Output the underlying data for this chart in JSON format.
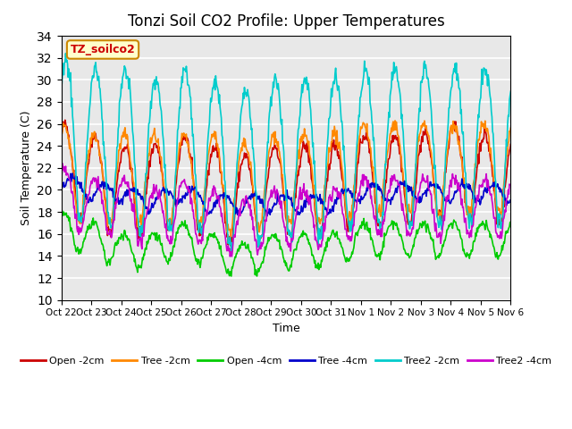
{
  "title": "Tonzi Soil CO2 Profile: Upper Temperatures",
  "xlabel": "Time",
  "ylabel": "Soil Temperature (C)",
  "ylim": [
    10,
    34
  ],
  "yticks": [
    10,
    12,
    14,
    16,
    18,
    20,
    22,
    24,
    26,
    28,
    30,
    32,
    34
  ],
  "xtick_labels": [
    "Oct 22",
    "Oct 23",
    "Oct 24",
    "Oct 25",
    "Oct 26",
    "Oct 27",
    "Oct 28",
    "Oct 29",
    "Oct 30",
    "Oct 31",
    "Nov 1",
    "Nov 2",
    "Nov 3",
    "Nov 4",
    "Nov 5",
    "Nov 6"
  ],
  "watermark": "TZ_soilco2",
  "plot_bg_color": "#e8e8e8",
  "series_colors": [
    "#cc0000",
    "#ff8800",
    "#00cc00",
    "#0000cc",
    "#00cccc",
    "#cc00cc"
  ],
  "series_labels": [
    "Open -2cm",
    "Tree -2cm",
    "Open -4cm",
    "Tree -4cm",
    "Tree2 -2cm",
    "Tree2 -4cm"
  ],
  "n_days": 15,
  "points_per_day": 48
}
